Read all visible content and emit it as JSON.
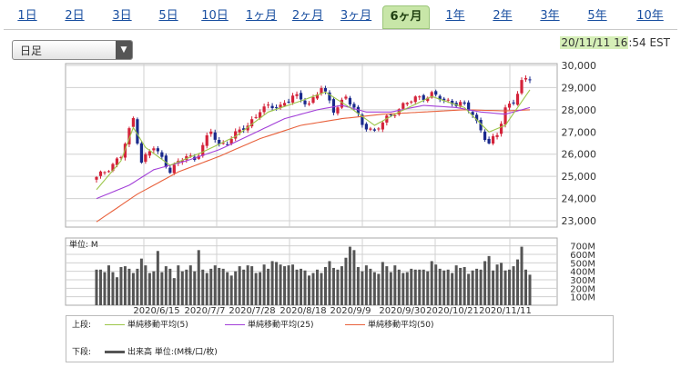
{
  "tabs": [
    "1日",
    "2日",
    "3日",
    "5日",
    "10日",
    "1ヶ月",
    "2ヶ月",
    "3ヶ月",
    "6ヶ月",
    "1年",
    "2年",
    "3年",
    "5年",
    "10年"
  ],
  "active_tab": "6ヶ月",
  "period_select": {
    "value": "日足"
  },
  "timestamp": {
    "highlight": "20/11/11 16",
    "rest": ":54 EST"
  },
  "colors": {
    "up": "#d4233a",
    "down": "#1a2a8c",
    "ma5": "#9cc64a",
    "ma25": "#a23fd8",
    "ma50": "#e8613c",
    "volume": "#555555",
    "grid": "#d0d0d0"
  },
  "legend": {
    "upper_label": "上段:",
    "lower_label": "下段:",
    "ma5": "単純移動平均(5)",
    "ma25": "単純移動平均(25)",
    "ma50": "単純移動平均(50)",
    "volume": "出来高 単位:(M株/口/枚)"
  },
  "chart_data": [
    {
      "type": "candlestick",
      "y_ticks": [
        "30,000",
        "29,000",
        "28,000",
        "27,000",
        "26,000",
        "25,000",
        "24,000",
        "23,000"
      ],
      "ylim": [
        23000,
        30000
      ],
      "x_ticks": [
        "2020/6/15",
        "2020/7/7",
        "2020/7/28",
        "2020/8/18",
        "2020/9/9",
        "2020/9/30",
        "2020/10/21",
        "2020/11/11"
      ],
      "date_range": [
        "2020-06-01",
        "2020-11-11"
      ],
      "anchors": [
        [
          0,
          24900
        ],
        [
          6,
          25900
        ],
        [
          9,
          27600
        ],
        [
          11,
          25700
        ],
        [
          14,
          26300
        ],
        [
          18,
          25300
        ],
        [
          22,
          25900
        ],
        [
          24,
          25800
        ],
        [
          28,
          27000
        ],
        [
          30,
          26400
        ],
        [
          32,
          26600
        ],
        [
          37,
          27300
        ],
        [
          40,
          28000
        ],
        [
          45,
          28200
        ],
        [
          48,
          28600
        ],
        [
          52,
          28300
        ],
        [
          55,
          29000
        ],
        [
          58,
          28000
        ],
        [
          61,
          28600
        ],
        [
          65,
          27400
        ],
        [
          68,
          27000
        ],
        [
          72,
          27800
        ],
        [
          75,
          28200
        ],
        [
          78,
          28500
        ],
        [
          82,
          28700
        ],
        [
          85,
          28400
        ],
        [
          89,
          28300
        ],
        [
          92,
          27800
        ],
        [
          94,
          27100
        ],
        [
          96,
          26500
        ],
        [
          98,
          26800
        ],
        [
          100,
          28100
        ],
        [
          102,
          28400
        ],
        [
          104,
          29200
        ],
        [
          106,
          29400
        ]
      ],
      "ma5": [
        [
          0,
          24400
        ],
        [
          6,
          25700
        ],
        [
          9,
          27200
        ],
        [
          12,
          26300
        ],
        [
          18,
          25500
        ],
        [
          26,
          26100
        ],
        [
          34,
          26800
        ],
        [
          42,
          27900
        ],
        [
          50,
          28400
        ],
        [
          56,
          28800
        ],
        [
          62,
          28100
        ],
        [
          68,
          27300
        ],
        [
          74,
          27900
        ],
        [
          82,
          28600
        ],
        [
          90,
          28100
        ],
        [
          96,
          27000
        ],
        [
          100,
          27300
        ],
        [
          106,
          28900
        ]
      ],
      "ma25": [
        [
          0,
          24000
        ],
        [
          8,
          24600
        ],
        [
          14,
          25300
        ],
        [
          22,
          25700
        ],
        [
          30,
          26200
        ],
        [
          38,
          26900
        ],
        [
          46,
          27600
        ],
        [
          54,
          28000
        ],
        [
          60,
          28200
        ],
        [
          66,
          27900
        ],
        [
          72,
          27900
        ],
        [
          80,
          28200
        ],
        [
          88,
          28100
        ],
        [
          94,
          27900
        ],
        [
          100,
          27800
        ],
        [
          106,
          28100
        ]
      ],
      "ma50": [
        [
          0,
          22950
        ],
        [
          10,
          24200
        ],
        [
          20,
          25200
        ],
        [
          30,
          25900
        ],
        [
          40,
          26700
        ],
        [
          50,
          27300
        ],
        [
          60,
          27600
        ],
        [
          70,
          27800
        ],
        [
          80,
          27900
        ],
        [
          90,
          28000
        ],
        [
          100,
          27950
        ],
        [
          106,
          28000
        ]
      ]
    },
    {
      "type": "bar",
      "unit_label": "単位: M",
      "y_ticks": [
        "700M",
        "600M",
        "500M",
        "400M",
        "300M",
        "200M",
        "100M"
      ],
      "ylim": [
        0,
        750
      ],
      "values": [
        420,
        420,
        390,
        470,
        390,
        330,
        450,
        460,
        430,
        380,
        430,
        550,
        470,
        380,
        400,
        640,
        390,
        460,
        430,
        320,
        470,
        400,
        420,
        470,
        400,
        650,
        420,
        380,
        430,
        470,
        440,
        430,
        390,
        350,
        400,
        460,
        420,
        470,
        460,
        380,
        390,
        480,
        430,
        520,
        510,
        480,
        460,
        470,
        480,
        420,
        430,
        410,
        350,
        380,
        420,
        380,
        450,
        520,
        440,
        420,
        460,
        560,
        690,
        650,
        450,
        400,
        470,
        430,
        390,
        370,
        510,
        460,
        390,
        470,
        420,
        380,
        390,
        430,
        420,
        420,
        420,
        400,
        520,
        480,
        430,
        410,
        420,
        380,
        470,
        440,
        450,
        370,
        410,
        430,
        420,
        520,
        580,
        410,
        480,
        500,
        410,
        420,
        460,
        540,
        690,
        420,
        360
      ]
    }
  ]
}
